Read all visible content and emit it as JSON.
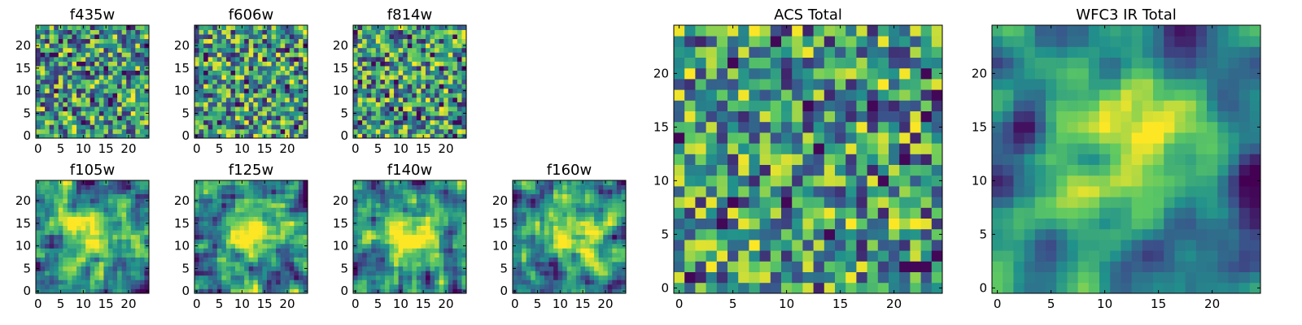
{
  "chart_data": [
    {
      "type": "heatmap",
      "title": "f435w",
      "n": 25,
      "xticks": [
        "0",
        "5",
        "10",
        "15",
        "20"
      ],
      "yticks": [
        "0",
        "5",
        "10",
        "15",
        "20"
      ],
      "pattern": "noise",
      "seed": 11
    },
    {
      "type": "heatmap",
      "title": "f606w",
      "n": 25,
      "xticks": [
        "0",
        "5",
        "10",
        "15",
        "20"
      ],
      "yticks": [
        "0",
        "5",
        "10",
        "15",
        "20"
      ],
      "pattern": "noise",
      "seed": 23
    },
    {
      "type": "heatmap",
      "title": "f814w",
      "n": 25,
      "xticks": [
        "0",
        "5",
        "10",
        "15",
        "20"
      ],
      "yticks": [
        "0",
        "5",
        "10",
        "15",
        "20"
      ],
      "pattern": "noise",
      "seed": 37
    },
    {
      "type": "heatmap",
      "title": "f105w",
      "n": 25,
      "xticks": [
        "0",
        "5",
        "10",
        "15",
        "20"
      ],
      "yticks": [
        "0",
        "5",
        "10",
        "15",
        "20"
      ],
      "pattern": "source",
      "seed": 41
    },
    {
      "type": "heatmap",
      "title": "f125w",
      "n": 25,
      "xticks": [
        "0",
        "5",
        "10",
        "15",
        "20"
      ],
      "yticks": [
        "0",
        "5",
        "10",
        "15",
        "20"
      ],
      "pattern": "source",
      "seed": 53
    },
    {
      "type": "heatmap",
      "title": "f140w",
      "n": 25,
      "xticks": [
        "0",
        "5",
        "10",
        "15",
        "20"
      ],
      "yticks": [
        "0",
        "5",
        "10",
        "15",
        "20"
      ],
      "pattern": "source",
      "seed": 67
    },
    {
      "type": "heatmap",
      "title": "f160w",
      "n": 25,
      "xticks": [
        "0",
        "5",
        "10",
        "15",
        "20"
      ],
      "yticks": [
        "0",
        "5",
        "10",
        "15",
        "20"
      ],
      "pattern": "source",
      "seed": 79
    },
    {
      "type": "heatmap",
      "title": "ACS Total",
      "n": 25,
      "xticks": [
        "0",
        "5",
        "10",
        "15",
        "20"
      ],
      "yticks": [
        "0",
        "5",
        "10",
        "15",
        "20"
      ],
      "pattern": "noise",
      "seed": 97
    },
    {
      "type": "heatmap",
      "title": "WFC3 IR Total",
      "n": 25,
      "xticks": [
        "0",
        "5",
        "10",
        "15",
        "20"
      ],
      "yticks": [
        "0",
        "5",
        "10",
        "15",
        "20"
      ],
      "pattern": "smooth",
      "seed": 113
    }
  ],
  "colormap": [
    "#440154",
    "#3b528b",
    "#21918c",
    "#5ec962",
    "#fde725"
  ]
}
